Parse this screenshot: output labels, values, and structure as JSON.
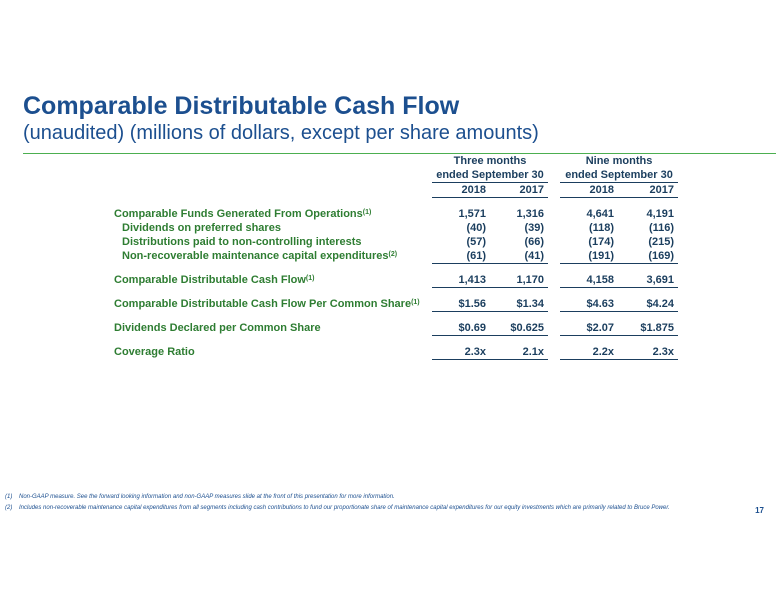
{
  "header": {
    "title": "Comparable Distributable Cash Flow",
    "subtitle": "(unaudited) (millions of dollars, except per share amounts)"
  },
  "table": {
    "group_headers": [
      {
        "line1": "Three months",
        "line2": "ended September 30"
      },
      {
        "line1": "Nine months",
        "line2": "ended September 30"
      }
    ],
    "years": [
      "2018",
      "2017",
      "2018",
      "2017"
    ],
    "rows": [
      {
        "label": "Comparable Funds Generated From Operations",
        "sup": "(1)",
        "values": [
          "1,571",
          "1,316",
          "4,641",
          "4,191"
        ]
      },
      {
        "label": "Dividends on preferred shares",
        "sup": "",
        "values": [
          "(40)",
          "(39)",
          "(118)",
          "(116)"
        ]
      },
      {
        "label": "Distributions paid to non-controlling interests",
        "sup": "",
        "values": [
          "(57)",
          "(66)",
          "(174)",
          "(215)"
        ]
      },
      {
        "label": "Non-recoverable maintenance capital expenditures",
        "sup": "(2)",
        "values": [
          "(61)",
          "(41)",
          "(191)",
          "(169)"
        ]
      },
      {
        "label": "Comparable Distributable Cash Flow",
        "sup": "(1)",
        "values": [
          "1,413",
          "1,170",
          "4,158",
          "3,691"
        ]
      },
      {
        "label": "Comparable Distributable Cash Flow Per Common Share",
        "sup": "(1)",
        "values": [
          "$1.56",
          "$1.34",
          "$4.63",
          "$4.24"
        ]
      },
      {
        "label": "Dividends Declared per Common Share",
        "sup": "",
        "values": [
          "$0.69",
          "$0.625",
          "$2.07",
          "$1.875"
        ]
      },
      {
        "label": "Coverage Ratio",
        "sup": "",
        "values": [
          "2.3x",
          "2.1x",
          "2.2x",
          "2.3x"
        ]
      }
    ]
  },
  "footnotes": [
    {
      "num": "(1)",
      "text": "Non-GAAP measure. See the forward looking information and non-GAAP measures slide at the front of this presentation for more information."
    },
    {
      "num": "(2)",
      "text": "Includes non-recoverable maintenance capital expenditures from all segments including cash contributions to fund our proportionate share of maintenance capital expenditures for our equity investments which are primarily related to Bruce Power."
    }
  ],
  "page_number": "17",
  "colors": {
    "title": "#1c4f8f",
    "label": "#2e7d32",
    "value": "#1b3e5e",
    "rule": "#4caf50"
  }
}
